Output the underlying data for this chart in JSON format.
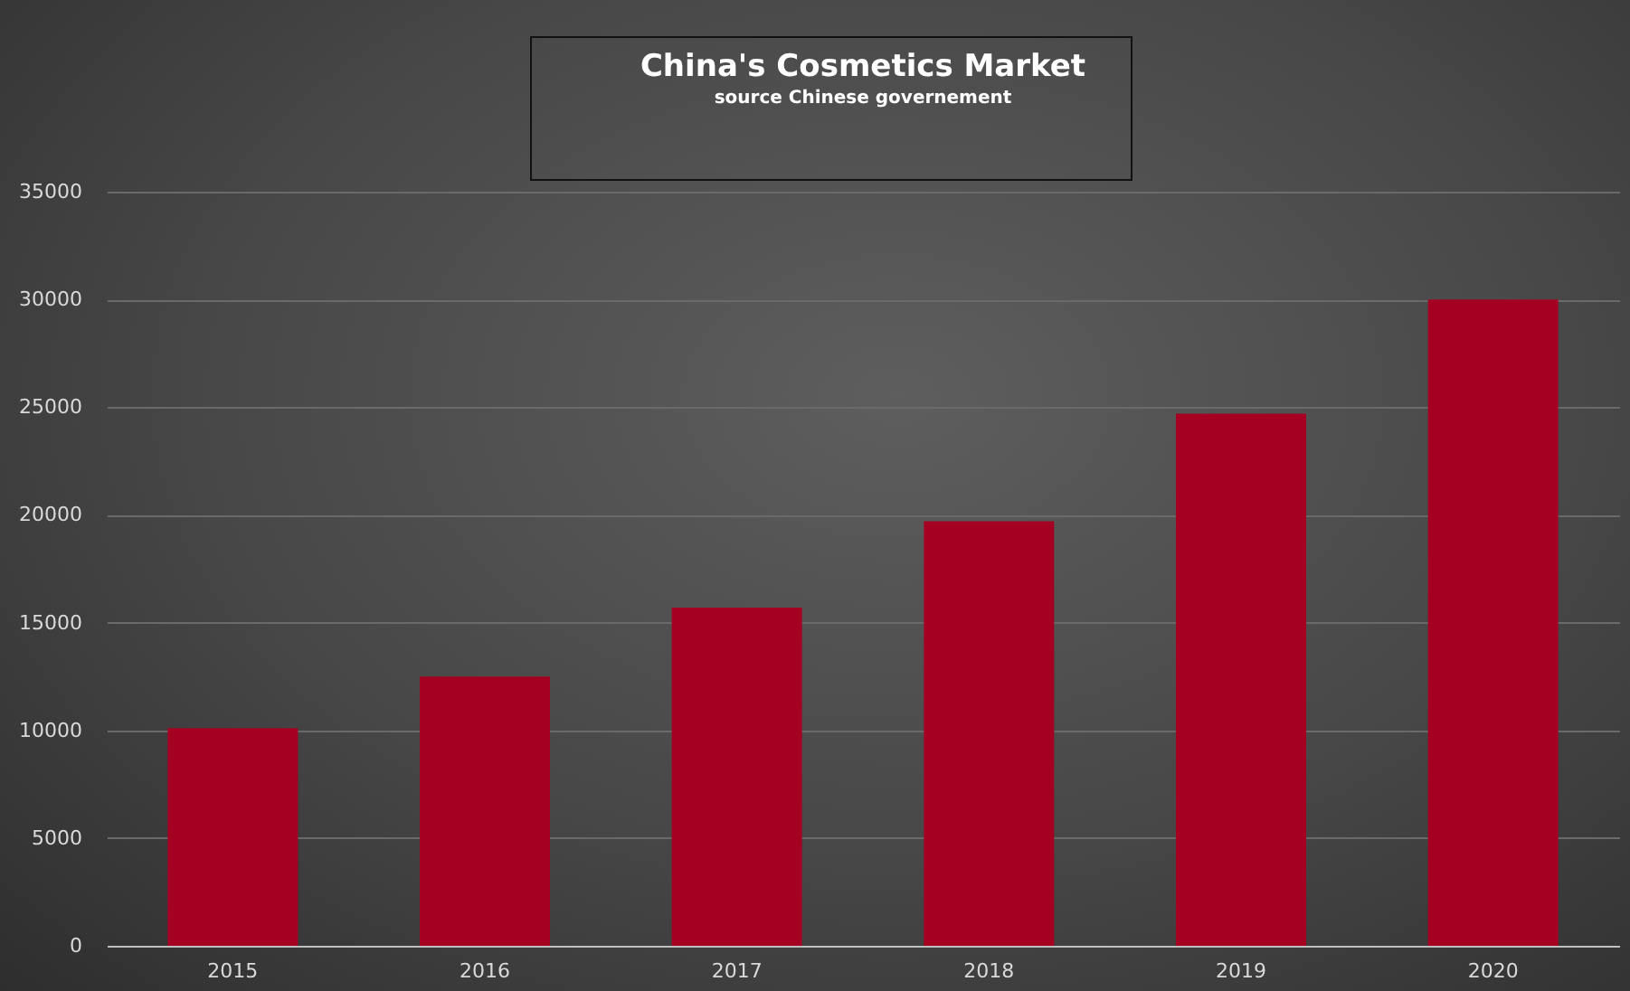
{
  "chart_data": {
    "type": "bar",
    "title": "China's Cosmetics Market",
    "subtitle": "source Chinese governement",
    "categories": [
      "2015",
      "2016",
      "2017",
      "2018",
      "2019",
      "2020"
    ],
    "values": [
      10100,
      12500,
      15700,
      19700,
      24700,
      30000
    ],
    "color": "#a50021",
    "ylim": [
      0,
      35000
    ],
    "yticks": [
      0,
      5000,
      10000,
      15000,
      20000,
      25000,
      30000,
      35000
    ],
    "grid": "y"
  }
}
